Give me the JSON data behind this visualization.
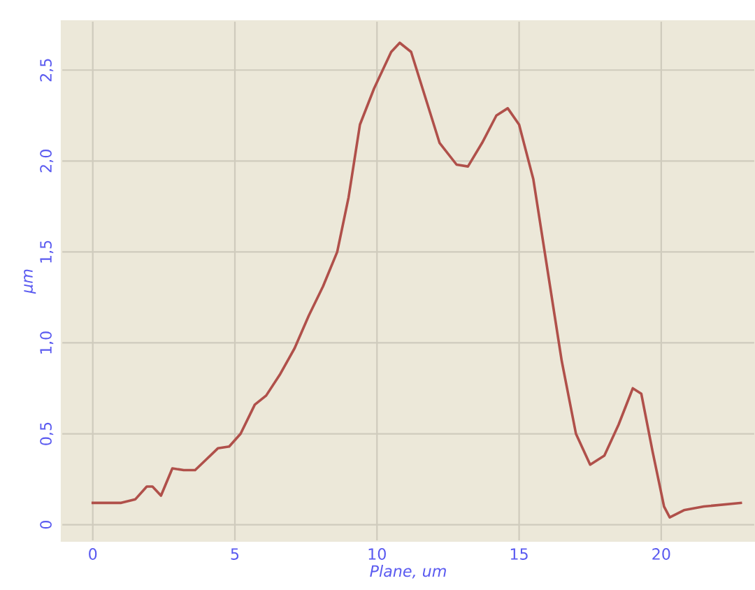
{
  "chart_data": {
    "type": "line",
    "xlabel": "Plane, um",
    "ylabel": "µm",
    "x": [
      0,
      0.5,
      1,
      1.5,
      1.9,
      2.1,
      2.4,
      2.8,
      3.2,
      3.6,
      4,
      4.4,
      4.8,
      5.2,
      5.7,
      6.1,
      6.6,
      7.1,
      7.6,
      8.1,
      8.6,
      9.0,
      9.4,
      9.9,
      10.5,
      10.8,
      11.2,
      11.6,
      12.2,
      12.8,
      13.2,
      13.7,
      14.2,
      14.6,
      15.0,
      15.5,
      16.0,
      16.5,
      17.0,
      17.5,
      18.0,
      18.5,
      19.0,
      19.3,
      19.7,
      20.1,
      20.3,
      20.8,
      21.5,
      22.8
    ],
    "series": [
      {
        "color": "#b0504a",
        "values": [
          0.12,
          0.12,
          0.12,
          0.14,
          0.21,
          0.21,
          0.16,
          0.31,
          0.3,
          0.3,
          0.36,
          0.42,
          0.43,
          0.5,
          0.66,
          0.71,
          0.83,
          0.97,
          1.15,
          1.31,
          1.5,
          1.8,
          2.2,
          2.4,
          2.6,
          2.65,
          2.6,
          2.4,
          2.1,
          1.98,
          1.97,
          2.1,
          2.25,
          2.29,
          2.2,
          1.9,
          1.4,
          0.9,
          0.5,
          0.33,
          0.38,
          0.55,
          0.75,
          0.72,
          0.4,
          0.1,
          0.04,
          0.08,
          0.1,
          0.12
        ]
      }
    ],
    "xlim": [
      -1.1,
      23.3
    ],
    "ylim": [
      -0.09,
      2.77
    ],
    "xticks": [
      0,
      5,
      10,
      15,
      20
    ],
    "yticks": [
      0,
      {
        "value": 0.5,
        "label": "0,5"
      },
      {
        "value": 1,
        "label": "1,0"
      },
      {
        "value": 1.5,
        "label": "1,5"
      },
      {
        "value": 2,
        "label": "2,0"
      },
      {
        "value": 2.5,
        "label": "2,5"
      }
    ],
    "grid": true,
    "marker": "none",
    "line_style": "solid"
  }
}
